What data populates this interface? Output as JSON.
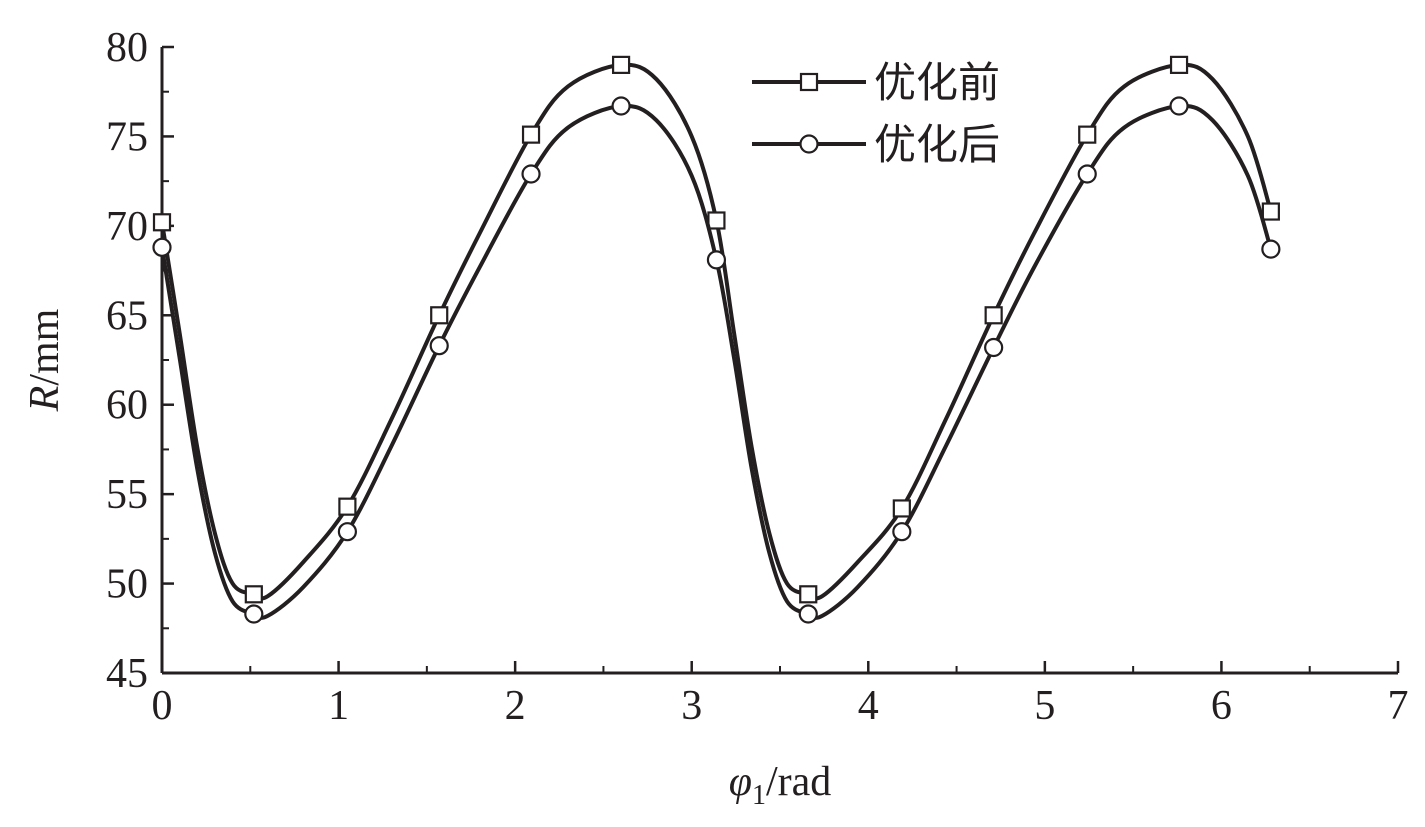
{
  "chart_data": {
    "type": "line",
    "title": "",
    "xlabel": {
      "symbol": "φ",
      "subscript": "1",
      "unit": "/rad"
    },
    "ylabel": {
      "symbol": "R",
      "unit": "/mm"
    },
    "xlim": [
      0,
      7
    ],
    "ylim": [
      45,
      80
    ],
    "xticks": [
      "0",
      "1",
      "2",
      "3",
      "4",
      "5",
      "6",
      "7"
    ],
    "yticks": [
      "45",
      "50",
      "55",
      "60",
      "65",
      "70",
      "75",
      "80"
    ],
    "grid": false,
    "legend_position": "top-right",
    "series": [
      {
        "name": "优化前",
        "marker": "square",
        "color": "#231f20",
        "points": [
          [
            0.0,
            70.2
          ],
          [
            0.1,
            64.0
          ],
          [
            0.2,
            57.6
          ],
          [
            0.3,
            52.8
          ],
          [
            0.4,
            50.0
          ],
          [
            0.52,
            49.4
          ],
          [
            0.6,
            49.3
          ],
          [
            0.8,
            51.2
          ],
          [
            1.05,
            54.3
          ],
          [
            1.3,
            59.2
          ],
          [
            1.57,
            65.0
          ],
          [
            1.8,
            69.6
          ],
          [
            2.09,
            75.1
          ],
          [
            2.3,
            77.8
          ],
          [
            2.6,
            79.0
          ],
          [
            2.8,
            78.2
          ],
          [
            3.0,
            75.0
          ],
          [
            3.14,
            70.3
          ],
          [
            3.24,
            64.0
          ],
          [
            3.34,
            57.6
          ],
          [
            3.44,
            52.8
          ],
          [
            3.54,
            50.0
          ],
          [
            3.66,
            49.4
          ],
          [
            3.74,
            49.3
          ],
          [
            3.94,
            51.2
          ],
          [
            4.19,
            54.2
          ],
          [
            4.44,
            59.2
          ],
          [
            4.71,
            65.0
          ],
          [
            4.94,
            69.6
          ],
          [
            5.24,
            75.1
          ],
          [
            5.45,
            77.8
          ],
          [
            5.76,
            79.0
          ],
          [
            5.95,
            78.2
          ],
          [
            6.15,
            75.0
          ],
          [
            6.28,
            70.8
          ]
        ],
        "markers": [
          [
            0.0,
            70.2
          ],
          [
            0.52,
            49.4
          ],
          [
            1.05,
            54.3
          ],
          [
            1.57,
            65.0
          ],
          [
            2.09,
            75.1
          ],
          [
            2.6,
            79.0
          ],
          [
            3.14,
            70.3
          ],
          [
            3.66,
            49.4
          ],
          [
            4.19,
            54.2
          ],
          [
            4.71,
            65.0
          ],
          [
            5.24,
            75.1
          ],
          [
            5.76,
            79.0
          ],
          [
            6.28,
            70.8
          ]
        ]
      },
      {
        "name": "优化后",
        "marker": "circle",
        "color": "#231f20",
        "points": [
          [
            0.0,
            68.8
          ],
          [
            0.1,
            62.6
          ],
          [
            0.2,
            56.4
          ],
          [
            0.3,
            51.7
          ],
          [
            0.4,
            49.0
          ],
          [
            0.52,
            48.3
          ],
          [
            0.6,
            48.2
          ],
          [
            0.8,
            49.8
          ],
          [
            1.05,
            52.9
          ],
          [
            1.3,
            57.7
          ],
          [
            1.57,
            63.3
          ],
          [
            1.8,
            67.7
          ],
          [
            2.09,
            72.9
          ],
          [
            2.3,
            75.5
          ],
          [
            2.6,
            76.7
          ],
          [
            2.8,
            75.9
          ],
          [
            3.0,
            72.8
          ],
          [
            3.14,
            68.1
          ],
          [
            3.24,
            62.6
          ],
          [
            3.34,
            56.4
          ],
          [
            3.44,
            51.7
          ],
          [
            3.54,
            49.0
          ],
          [
            3.66,
            48.3
          ],
          [
            3.74,
            48.2
          ],
          [
            3.94,
            49.8
          ],
          [
            4.19,
            52.9
          ],
          [
            4.44,
            57.7
          ],
          [
            4.71,
            63.2
          ],
          [
            4.94,
            67.7
          ],
          [
            5.24,
            72.9
          ],
          [
            5.45,
            75.5
          ],
          [
            5.76,
            76.7
          ],
          [
            5.95,
            75.9
          ],
          [
            6.15,
            72.8
          ],
          [
            6.28,
            68.7
          ]
        ],
        "markers": [
          [
            0.0,
            68.8
          ],
          [
            0.52,
            48.3
          ],
          [
            1.05,
            52.9
          ],
          [
            1.57,
            63.3
          ],
          [
            2.09,
            72.9
          ],
          [
            2.6,
            76.7
          ],
          [
            3.14,
            68.1
          ],
          [
            3.66,
            48.3
          ],
          [
            4.19,
            52.9
          ],
          [
            4.71,
            63.2
          ],
          [
            5.24,
            72.9
          ],
          [
            5.76,
            76.7
          ],
          [
            6.28,
            68.7
          ]
        ]
      }
    ]
  }
}
